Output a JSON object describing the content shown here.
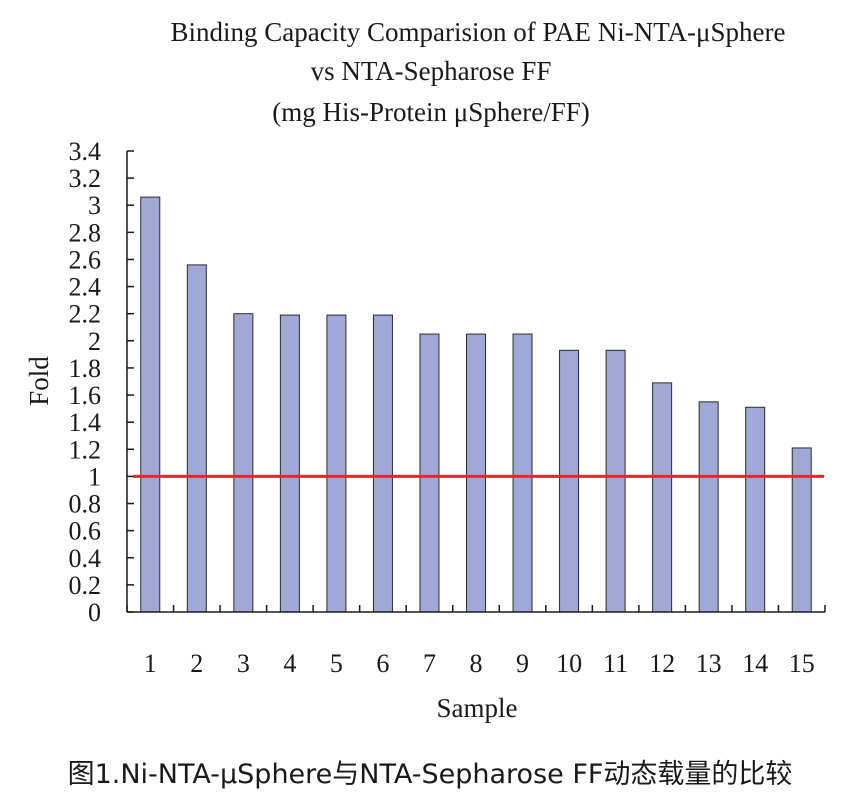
{
  "chart_data": {
    "type": "bar",
    "title_lines": [
      "Binding Capacity Comparision of PAE Ni-NTA-μSphere",
      "vs NTA-Sepharose FF",
      "(mg His-Protein μSphere/FF)"
    ],
    "xlabel": "Sample",
    "ylabel": "Fold",
    "categories": [
      "1",
      "2",
      "3",
      "4",
      "5",
      "6",
      "7",
      "8",
      "9",
      "10",
      "11",
      "12",
      "13",
      "14",
      "15"
    ],
    "values": [
      3.06,
      2.56,
      2.2,
      2.19,
      2.19,
      2.19,
      2.05,
      2.05,
      2.05,
      1.93,
      1.93,
      1.69,
      1.55,
      1.51,
      1.21
    ],
    "yticks": [
      "0",
      "0.2",
      "0.4",
      "0.6",
      "0.8",
      "1",
      "1.2",
      "1.4",
      "1.6",
      "1.8",
      "2",
      "2.2",
      "2.4",
      "2.6",
      "2.8",
      "3",
      "3.2",
      "3.4"
    ],
    "ylim": [
      0,
      3.4
    ],
    "reference_line": {
      "value": 1,
      "color": "#e8262a"
    },
    "bar_color": "#9fa8d6",
    "grid": false,
    "legend": "none"
  },
  "caption": "图1.Ni-NTA-μSphere与NTA-Sepharose FF动态载量的比较"
}
